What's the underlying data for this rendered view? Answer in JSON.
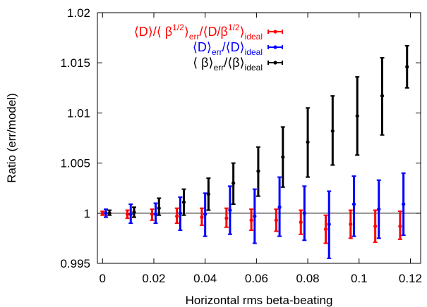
{
  "chart_data": {
    "type": "scatter",
    "title": "",
    "xlabel": "Horizontal rms beta-beating",
    "ylabel": "Ratio (err/model)",
    "xlim": [
      -0.002,
      0.124
    ],
    "ylim": [
      0.995,
      1.02
    ],
    "x_ticks": [
      "0",
      "0.02",
      "0.04",
      "0.06",
      "0.08",
      "0.1",
      "0.12"
    ],
    "y_ticks": [
      "0.995",
      "1",
      "1.005",
      "1.01",
      "1.015",
      "1.02"
    ],
    "reference_line": 1,
    "grid": false,
    "legend_position": "top-left",
    "colors": {
      "red": "#ff0000",
      "blue": "#0000ff",
      "black": "#000000"
    },
    "legend": [
      {
        "color": "red",
        "parts": [
          "⟨D⟩/⟨ β",
          "1/2",
          "⟩",
          "err",
          "/⟨D/β",
          "1/2",
          "⟩",
          "ideal"
        ]
      },
      {
        "color": "blue",
        "parts": [
          "⟨D⟩",
          "err",
          "/⟨D⟩",
          "ideal"
        ]
      },
      {
        "color": "black",
        "parts": [
          "⟨ β⟩",
          "err",
          "/⟨β⟩",
          "ideal"
        ]
      }
    ],
    "series": [
      {
        "color": "red",
        "points": [
          {
            "x": 0.0,
            "y": 1.0,
            "lo": 0.9998,
            "hi": 1.0002
          },
          {
            "x": 0.0097,
            "y": 0.9999,
            "lo": 0.9995,
            "hi": 1.0003
          },
          {
            "x": 0.0193,
            "y": 0.9999,
            "lo": 0.9993,
            "hi": 1.0004
          },
          {
            "x": 0.029,
            "y": 0.9997,
            "lo": 0.999,
            "hi": 1.0005
          },
          {
            "x": 0.0387,
            "y": 0.9996,
            "lo": 0.9988,
            "hi": 1.0005
          },
          {
            "x": 0.0483,
            "y": 0.9995,
            "lo": 0.9986,
            "hi": 1.0005
          },
          {
            "x": 0.058,
            "y": 0.9993,
            "lo": 0.9983,
            "hi": 1.0004
          },
          {
            "x": 0.0677,
            "y": 0.9993,
            "lo": 0.9982,
            "hi": 1.0004
          },
          {
            "x": 0.0773,
            "y": 0.9991,
            "lo": 0.9979,
            "hi": 1.0003
          },
          {
            "x": 0.087,
            "y": 0.9984,
            "lo": 0.997,
            "hi": 0.9998
          },
          {
            "x": 0.0967,
            "y": 0.9989,
            "lo": 0.9975,
            "hi": 1.0003
          },
          {
            "x": 0.1063,
            "y": 0.9987,
            "lo": 0.9971,
            "hi": 1.0003
          },
          {
            "x": 0.116,
            "y": 0.9987,
            "lo": 0.9974,
            "hi": 1.0002
          }
        ]
      },
      {
        "color": "blue",
        "points": [
          {
            "x": 0.0013,
            "y": 1.0,
            "lo": 0.9996,
            "hi": 1.0004
          },
          {
            "x": 0.011,
            "y": 0.9999,
            "lo": 0.999,
            "hi": 1.0009
          },
          {
            "x": 0.0207,
            "y": 0.9999,
            "lo": 0.999,
            "hi": 1.001
          },
          {
            "x": 0.0303,
            "y": 1.0,
            "lo": 0.9983,
            "hi": 1.0016
          },
          {
            "x": 0.04,
            "y": 0.9999,
            "lo": 0.9977,
            "hi": 1.002
          },
          {
            "x": 0.0497,
            "y": 1.0003,
            "lo": 0.9979,
            "hi": 1.0027
          },
          {
            "x": 0.0593,
            "y": 0.9997,
            "lo": 0.997,
            "hi": 1.0024
          },
          {
            "x": 0.069,
            "y": 1.0006,
            "lo": 0.9977,
            "hi": 1.0036
          },
          {
            "x": 0.0787,
            "y": 1.0,
            "lo": 0.9973,
            "hi": 1.0027
          },
          {
            "x": 0.0883,
            "y": 0.9989,
            "lo": 0.9955,
            "hi": 1.0022
          },
          {
            "x": 0.098,
            "y": 1.0009,
            "lo": 0.9977,
            "hi": 1.0037
          },
          {
            "x": 0.1077,
            "y": 1.0004,
            "lo": 0.9975,
            "hi": 1.0033
          },
          {
            "x": 0.1173,
            "y": 1.0009,
            "lo": 0.9978,
            "hi": 1.004
          }
        ]
      },
      {
        "color": "black",
        "points": [
          {
            "x": 0.0027,
            "y": 1.0,
            "lo": 0.9998,
            "hi": 1.0003
          },
          {
            "x": 0.0123,
            "y": 1.0001,
            "lo": 0.9996,
            "hi": 1.0006
          },
          {
            "x": 0.022,
            "y": 1.0005,
            "lo": 0.9998,
            "hi": 1.0015
          },
          {
            "x": 0.0317,
            "y": 1.0011,
            "lo": 0.9998,
            "hi": 1.0024
          },
          {
            "x": 0.0413,
            "y": 1.0019,
            "lo": 1.0003,
            "hi": 1.0035
          },
          {
            "x": 0.051,
            "y": 1.003,
            "lo": 1.0009,
            "hi": 1.005
          },
          {
            "x": 0.0607,
            "y": 1.0042,
            "lo": 1.0017,
            "hi": 1.0066
          },
          {
            "x": 0.0703,
            "y": 1.0056,
            "lo": 1.0026,
            "hi": 1.0086
          },
          {
            "x": 0.08,
            "y": 1.0071,
            "lo": 1.0036,
            "hi": 1.0105
          },
          {
            "x": 0.0897,
            "y": 1.0082,
            "lo": 1.0048,
            "hi": 1.0117
          },
          {
            "x": 0.0993,
            "y": 1.0097,
            "lo": 1.0058,
            "hi": 1.0136
          },
          {
            "x": 0.109,
            "y": 1.0117,
            "lo": 1.0078,
            "hi": 1.0155
          },
          {
            "x": 0.1187,
            "y": 1.0146,
            "lo": 1.0125,
            "hi": 1.0167
          }
        ]
      }
    ]
  }
}
